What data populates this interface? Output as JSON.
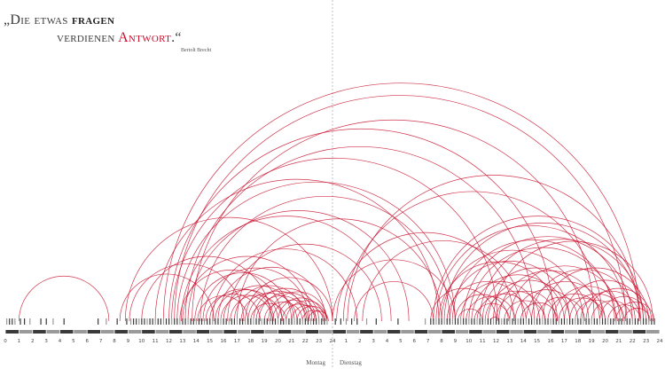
{
  "quote": {
    "open_mark": "„",
    "part1": "Die etwas ",
    "part2": "fragen",
    "part3": "verdienen ",
    "part4": "Antwort",
    "part5": ".“",
    "author": "Bertolt Brecht"
  },
  "chart_data": {
    "type": "arc",
    "title": "",
    "days": [
      "Montag",
      "Dienstag"
    ],
    "hour_ticks": [
      "0",
      "1",
      "2",
      "3",
      "4",
      "5",
      "6",
      "7",
      "8",
      "9",
      "10",
      "11",
      "12",
      "13",
      "14",
      "15",
      "16",
      "17",
      "18",
      "19",
      "20",
      "21",
      "22",
      "23",
      "24",
      "1",
      "2",
      "3",
      "4",
      "5",
      "6",
      "7",
      "8",
      "9",
      "10",
      "11",
      "12",
      "13",
      "14",
      "15",
      "16",
      "17",
      "18",
      "19",
      "20",
      "21",
      "22",
      "23",
      "24"
    ],
    "x_unit": "hours since Monday 0:00",
    "x_range": [
      0,
      48
    ],
    "question_times": [
      0.1,
      0.3,
      0.5,
      0.7,
      1.1,
      1.4,
      1.8,
      2.6,
      3.0,
      3.5,
      4.3,
      6.8,
      7.4,
      8.2,
      8.9,
      9.2,
      9.4,
      9.6,
      9.8,
      10.0,
      10.2,
      10.4,
      10.6,
      10.8,
      11.0,
      11.2,
      11.4,
      11.6,
      11.8,
      12.0,
      12.2,
      12.4,
      12.6,
      12.8,
      13.0,
      13.2,
      13.4,
      13.6,
      13.8,
      14.0,
      14.2,
      14.4,
      14.6,
      14.8,
      15.0,
      15.2,
      15.4,
      15.6,
      15.8,
      16.0,
      16.2,
      16.4,
      16.6,
      16.8,
      17.0,
      17.2,
      17.4,
      17.6,
      17.8,
      18.0,
      18.2,
      18.4,
      18.6,
      18.8,
      19.0,
      19.2,
      19.4,
      19.6,
      19.8,
      20.0,
      20.2,
      20.4,
      20.6,
      20.8,
      21.0,
      21.2,
      21.4,
      21.6,
      21.8,
      22.0,
      22.2,
      22.4,
      22.6,
      22.8,
      23.0,
      23.2,
      23.4,
      23.6,
      24.2,
      24.6,
      25.0,
      25.4,
      25.8,
      26.5,
      27.2,
      28.8,
      30.8,
      31.2,
      31.4,
      31.6,
      31.8,
      32.0,
      32.2,
      32.4,
      32.6,
      32.8,
      33.0,
      33.2,
      33.4,
      33.6,
      33.8,
      34.0,
      34.2,
      34.4,
      34.6,
      34.8,
      35.0,
      35.2,
      35.4,
      35.6,
      35.8,
      36.0,
      36.2,
      36.4,
      36.6,
      36.8,
      37.0,
      37.2,
      37.4,
      37.6,
      37.8,
      38.0,
      38.2,
      38.4,
      38.6,
      38.8,
      39.0,
      39.2,
      39.4,
      39.6,
      39.8,
      40.0,
      40.2,
      40.4,
      40.6,
      40.8,
      41.0,
      41.2,
      41.4,
      41.6,
      41.8,
      42.0,
      42.2,
      42.4,
      42.6,
      42.8,
      43.0,
      43.2,
      43.4,
      43.6,
      43.8,
      44.0,
      44.2,
      44.4,
      44.6,
      44.8,
      45.0,
      45.2,
      45.4,
      45.6,
      45.8,
      46.0,
      46.2,
      46.4,
      46.6,
      46.8,
      47.0,
      47.2,
      47.4,
      47.6
    ],
    "arcs": [
      [
        1.0,
        7.6
      ],
      [
        8.8,
        24.0
      ],
      [
        8.4,
        15.3
      ],
      [
        9.1,
        17.5
      ],
      [
        10.0,
        19.5
      ],
      [
        11.0,
        31.8
      ],
      [
        11.6,
        46.5
      ],
      [
        12.0,
        40.2
      ],
      [
        12.2,
        36.1
      ],
      [
        12.4,
        45.5
      ],
      [
        12.6,
        33.0
      ],
      [
        12.8,
        20.3
      ],
      [
        12.9,
        28.3
      ],
      [
        13.0,
        22.5
      ],
      [
        13.2,
        38.8
      ],
      [
        13.4,
        29.6
      ],
      [
        13.7,
        43.2
      ],
      [
        13.9,
        21.0
      ],
      [
        14.1,
        17.8
      ],
      [
        14.3,
        32.6
      ],
      [
        14.5,
        22.3
      ],
      [
        14.7,
        18.7
      ],
      [
        15.0,
        19.7
      ],
      [
        15.2,
        25.8
      ],
      [
        15.4,
        20.0
      ],
      [
        15.6,
        23.5
      ],
      [
        15.8,
        19.6
      ],
      [
        16.0,
        21.2
      ],
      [
        16.3,
        27.6
      ],
      [
        16.5,
        20.3
      ],
      [
        16.8,
        22.0
      ],
      [
        17.0,
        32.0
      ],
      [
        17.3,
        21.4
      ],
      [
        17.6,
        24.0
      ],
      [
        17.8,
        22.2
      ],
      [
        18.0,
        20.6
      ],
      [
        18.2,
        23.0
      ],
      [
        18.4,
        22.1
      ],
      [
        18.6,
        22.8
      ],
      [
        19.0,
        21.8
      ],
      [
        19.3,
        23.6
      ],
      [
        19.6,
        22.7
      ],
      [
        20.0,
        23.4
      ],
      [
        20.3,
        22.8
      ],
      [
        20.6,
        23.6
      ],
      [
        21.0,
        23.3
      ],
      [
        21.4,
        23.6
      ],
      [
        21.8,
        23.4
      ],
      [
        22.2,
        23.7
      ],
      [
        24.0,
        33.0
      ],
      [
        24.3,
        37.3
      ],
      [
        24.8,
        43.8
      ],
      [
        25.1,
        46.5
      ],
      [
        25.6,
        31.4
      ],
      [
        26.2,
        38.0
      ],
      [
        31.2,
        36.0
      ],
      [
        31.4,
        46.8
      ],
      [
        31.6,
        45.6
      ],
      [
        31.8,
        40.5
      ],
      [
        32.0,
        42.4
      ],
      [
        32.2,
        46.6
      ],
      [
        32.4,
        38.2
      ],
      [
        32.6,
        41.4
      ],
      [
        32.8,
        44.7
      ],
      [
        33.0,
        36.9
      ],
      [
        33.2,
        35.0
      ],
      [
        33.4,
        39.2
      ],
      [
        33.6,
        46.0
      ],
      [
        33.8,
        37.4
      ],
      [
        34.0,
        44.8
      ],
      [
        34.2,
        41.0
      ],
      [
        34.4,
        37.0
      ],
      [
        34.6,
        38.6
      ],
      [
        34.8,
        46.8
      ],
      [
        35.0,
        42.8
      ],
      [
        35.2,
        39.6
      ],
      [
        35.4,
        41.4
      ],
      [
        35.6,
        36.2
      ],
      [
        35.8,
        47.5
      ],
      [
        36.0,
        40.4
      ],
      [
        36.2,
        43.6
      ],
      [
        36.6,
        39.6
      ],
      [
        37.0,
        45.1
      ],
      [
        37.4,
        42.0
      ],
      [
        37.8,
        40.5
      ],
      [
        38.2,
        44.0
      ],
      [
        38.6,
        46.2
      ],
      [
        39.0,
        42.5
      ],
      [
        39.4,
        47.2
      ],
      [
        39.8,
        43.8
      ],
      [
        40.2,
        45.3
      ],
      [
        40.6,
        44.0
      ],
      [
        41.0,
        47.0
      ],
      [
        41.4,
        45.4
      ],
      [
        41.8,
        44.9
      ],
      [
        42.2,
        46.6
      ],
      [
        42.6,
        47.4
      ],
      [
        43.0,
        46.0
      ],
      [
        43.6,
        47.2
      ],
      [
        44.2,
        46.6
      ],
      [
        44.8,
        47.6
      ],
      [
        45.4,
        47.3
      ]
    ]
  },
  "colors": {
    "arc": "#c8102e",
    "tick_dark": "#3a3a3a",
    "tick_light": "#9a9a9a",
    "divider": "#999999"
  }
}
